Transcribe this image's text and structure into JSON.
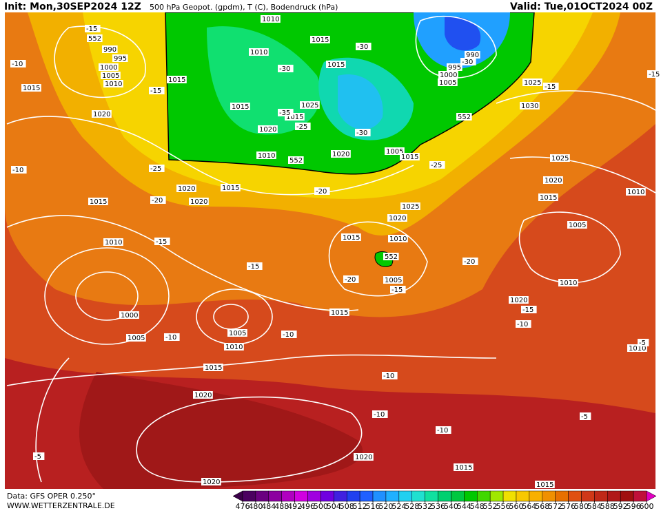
{
  "header": {
    "init": "Init: Mon,30SEP2024 12Z",
    "title": "500 hPa Geopot. (gpdm), T (C), Bodendruck (hPa)",
    "valid": "Valid: Tue,01OCT2024 00Z"
  },
  "footer": {
    "data": "Data: GFS OPER 0.250°",
    "site": "WWW.WETTERZENTRALE.DE"
  },
  "map_labels": [
    "1010",
    "1015",
    "1010",
    "1015",
    "1015",
    "1015",
    "1025",
    "1015",
    "1020",
    "1010",
    "1020",
    "1005",
    "1015",
    "1015",
    "1020",
    "1020",
    "1015",
    "1020",
    "1015",
    "990",
    "995",
    "1000",
    "1005",
    "1010",
    "990",
    "995",
    "1000",
    "1005",
    "1025",
    "1030",
    "1025",
    "1020",
    "1015",
    "1010",
    "1005",
    "1025",
    "1020",
    "1015",
    "1010",
    "1005",
    "1010",
    "1020",
    "1010",
    "1000",
    "1005",
    "1005",
    "1010",
    "1015",
    "1015",
    "1020",
    "1020",
    "1015",
    "1020",
    "1015",
    "1010",
    "-15",
    "-10",
    "-15",
    "-10",
    "-25",
    "-20",
    "-15",
    "-15",
    "-20",
    "-30",
    "-30",
    "-30",
    "-30",
    "-25",
    "-20",
    "-20",
    "-15",
    "-15",
    "-15",
    "-15",
    "-10",
    "-10",
    "-10",
    "-10",
    "-10",
    "-10",
    "-5",
    "-5",
    "-5",
    "-35",
    "-25",
    "552",
    "552",
    "552",
    "552"
  ],
  "legend": {
    "ticks": [
      476,
      480,
      484,
      488,
      492,
      496,
      500,
      504,
      508,
      512,
      516,
      520,
      524,
      528,
      532,
      536,
      540,
      544,
      548,
      552,
      556,
      560,
      564,
      568,
      572,
      576,
      580,
      584,
      588,
      592,
      596,
      600
    ],
    "colors": [
      "#4b0060",
      "#6a0080",
      "#8c00a0",
      "#b000c0",
      "#d000e0",
      "#a000e0",
      "#7000e0",
      "#4020e0",
      "#2040f0",
      "#2060ff",
      "#2090ff",
      "#20b0ff",
      "#20d0f0",
      "#20e0d0",
      "#10e0a0",
      "#00d070",
      "#00c840",
      "#00c800",
      "#40d800",
      "#a0e800",
      "#f0e000",
      "#f8c800",
      "#f8b000",
      "#f09000",
      "#e87000",
      "#e05010",
      "#d03818",
      "#c02818",
      "#b01818",
      "#a01010",
      "#c0103a"
    ],
    "left_arrow": "#3a0048",
    "right_arrow": "#e000c0"
  }
}
